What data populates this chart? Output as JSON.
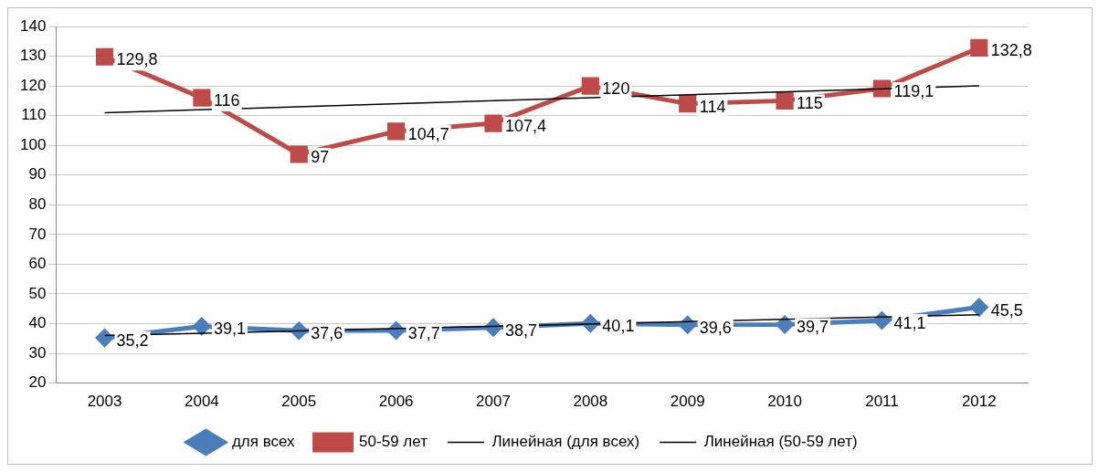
{
  "chart_data": {
    "type": "line",
    "categories": [
      "2003",
      "2004",
      "2005",
      "2006",
      "2007",
      "2008",
      "2009",
      "2010",
      "2011",
      "2012"
    ],
    "series": [
      {
        "name": "для всех",
        "color": "#4a7ebb",
        "marker": "diamond",
        "values": [
          35.2,
          39.1,
          37.6,
          37.7,
          38.7,
          40.1,
          39.6,
          39.7,
          41.1,
          45.5
        ],
        "value_labels": [
          "35,2",
          "39,1",
          "37,6",
          "37,7",
          "38,7",
          "40,1",
          "39,6",
          "39,7",
          "41,1",
          "45,5"
        ]
      },
      {
        "name": "50-59 лет",
        "color": "#be4b48",
        "marker": "square",
        "values": [
          129.8,
          116,
          97,
          104.7,
          107.4,
          120,
          114,
          115,
          119.1,
          132.8
        ],
        "value_labels": [
          "129,8",
          "116",
          "97",
          "104,7",
          "107,4",
          "120",
          "114",
          "115",
          "119,1",
          "132,8"
        ]
      },
      {
        "name": "Линейная (для всех)",
        "color": "#000000",
        "marker": "none",
        "values": [
          36,
          null,
          null,
          null,
          null,
          null,
          null,
          null,
          null,
          43
        ]
      },
      {
        "name": "Линейная (50-59 лет)",
        "color": "#000000",
        "marker": "none",
        "values": [
          111,
          null,
          null,
          null,
          null,
          null,
          null,
          null,
          null,
          120
        ]
      }
    ],
    "ylim": [
      20,
      140
    ],
    "yticks": [
      20,
      30,
      40,
      50,
      60,
      70,
      80,
      90,
      100,
      110,
      120,
      130,
      140
    ],
    "grid": "y",
    "legend": "bottom"
  }
}
